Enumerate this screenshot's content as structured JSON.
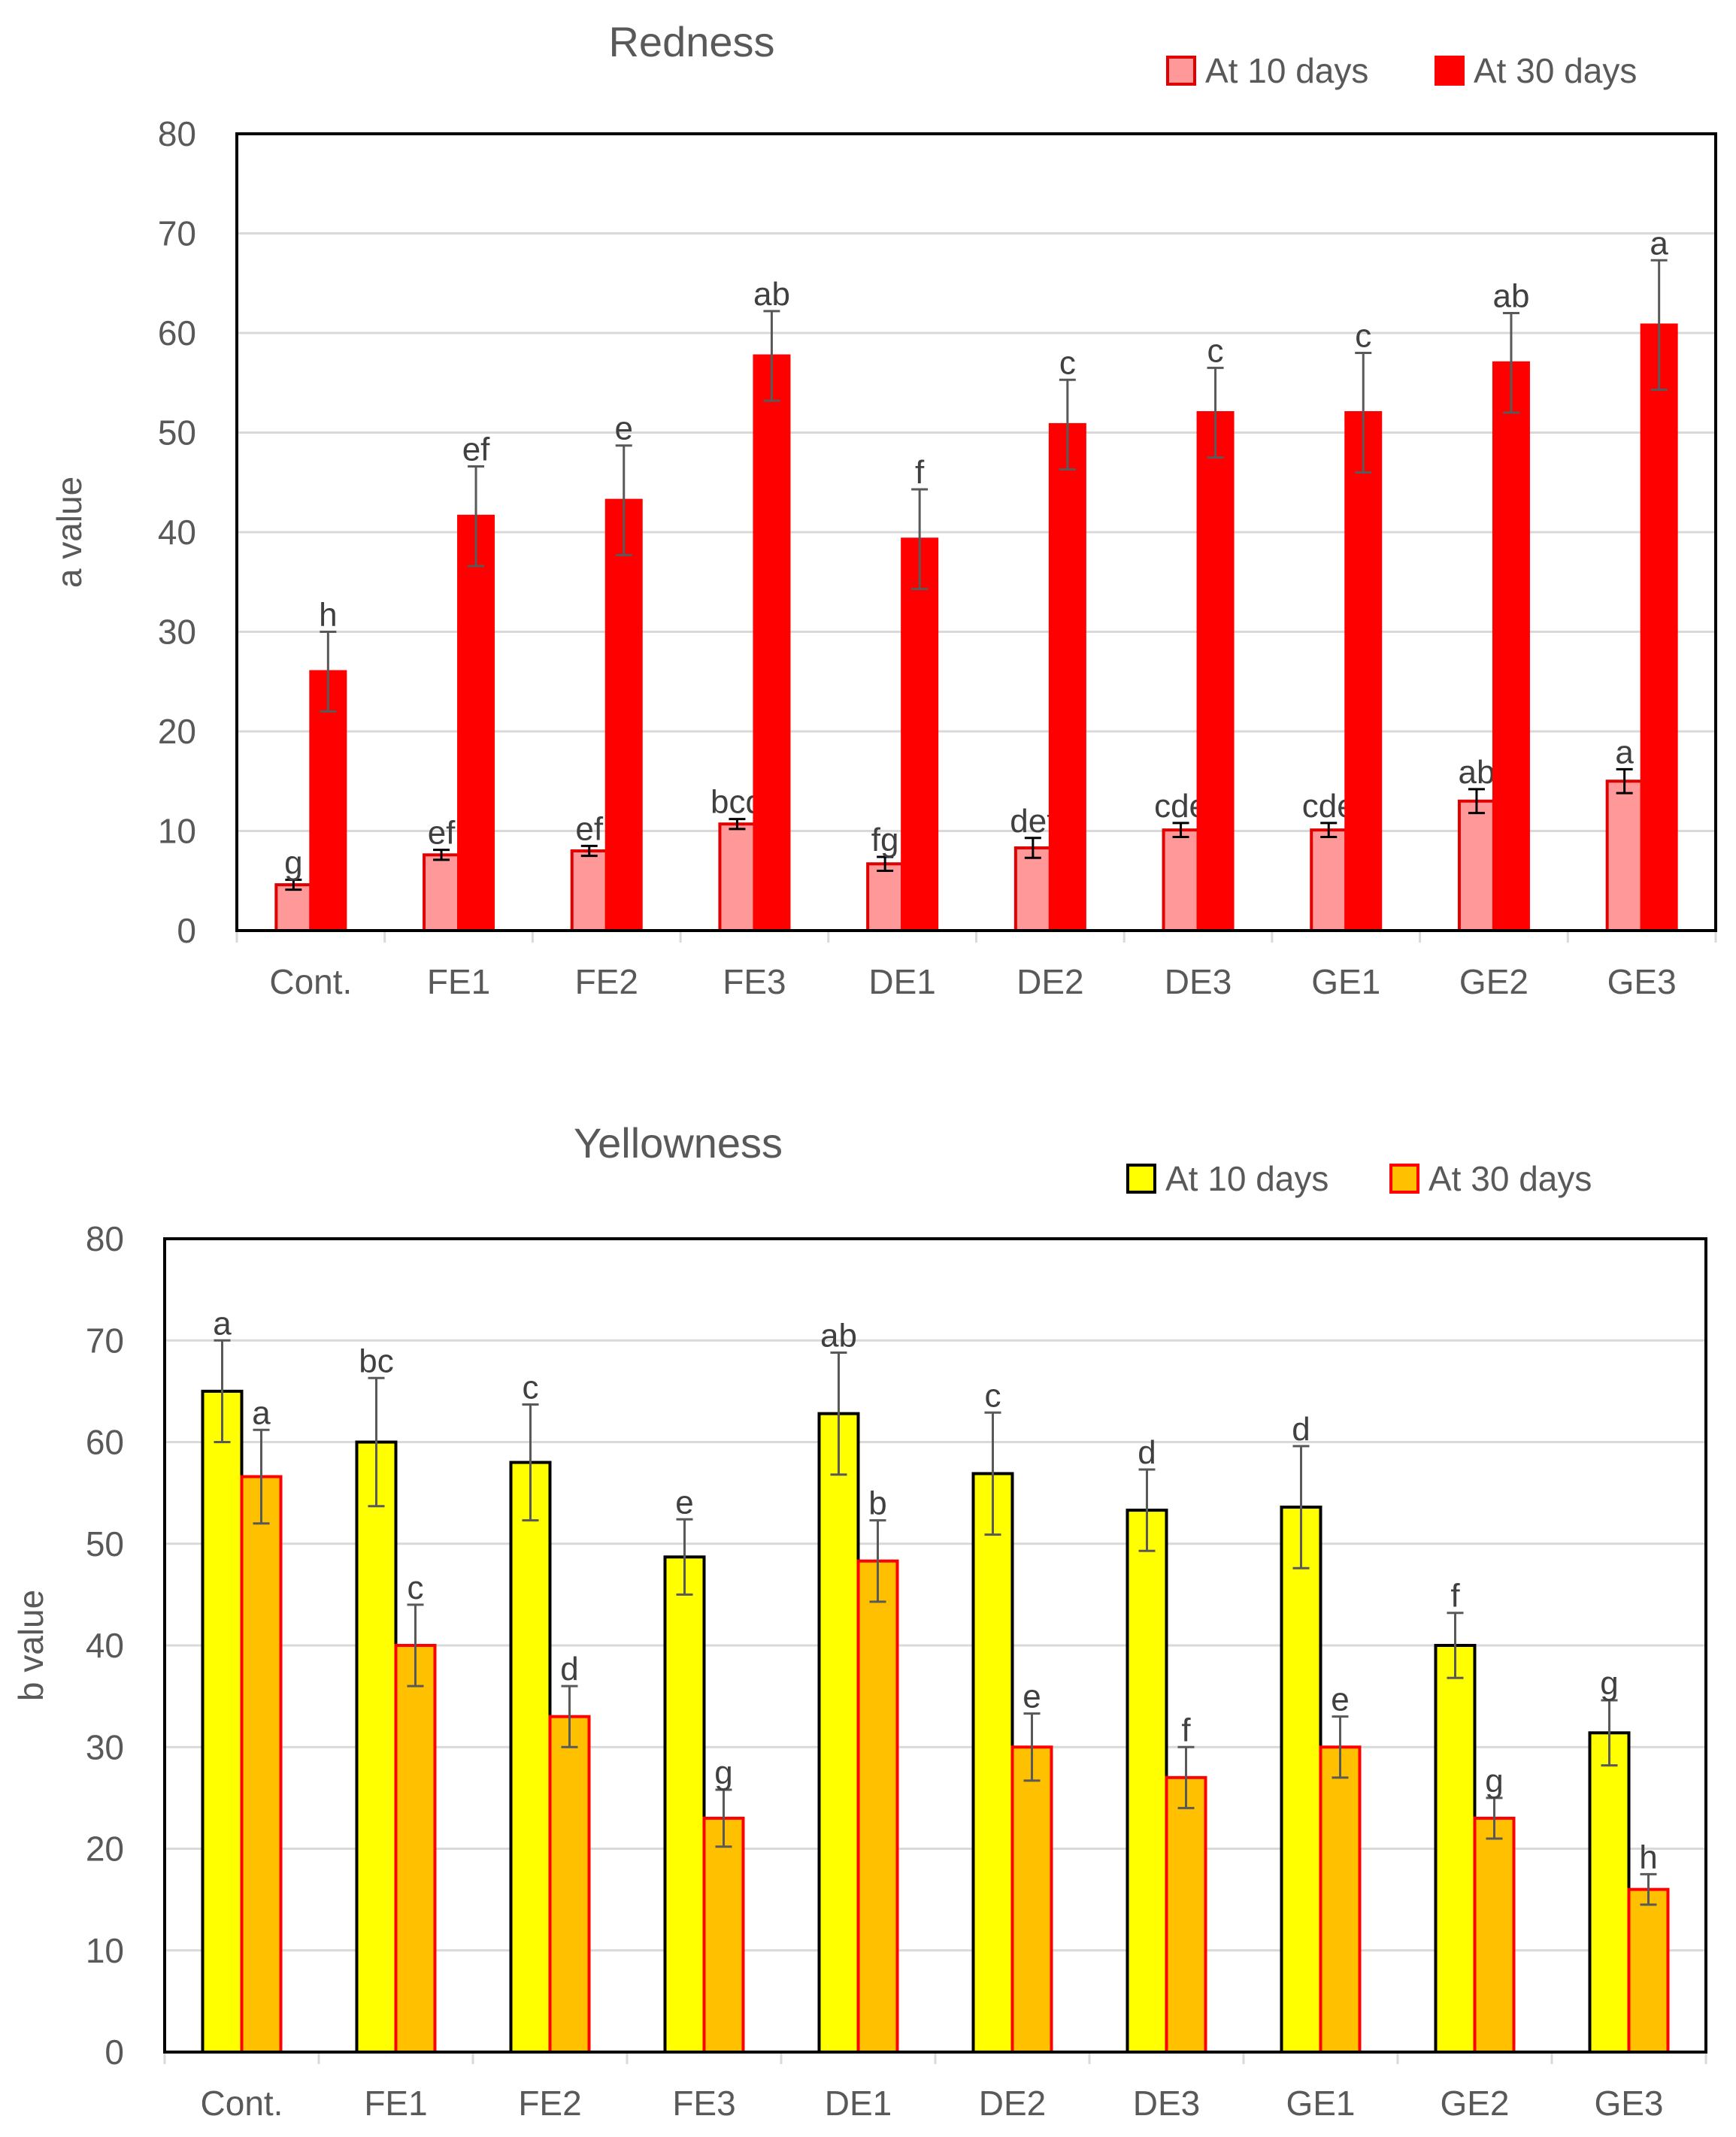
{
  "chart_data": [
    {
      "type": "bar",
      "title": "Redness",
      "ylabel": "a value",
      "xlabel": "",
      "ylim": [
        0,
        80
      ],
      "yticks": [
        0,
        10,
        20,
        30,
        40,
        50,
        60,
        70,
        80
      ],
      "grid": true,
      "legend_position": "top-right",
      "categories": [
        "Cont.",
        "FE1",
        "FE2",
        "FE3",
        "DE1",
        "DE2",
        "DE3",
        "GE1",
        "GE2",
        "GE3"
      ],
      "series": [
        {
          "name": "At 10 days",
          "color": "#ff9999",
          "edge": "#e00000",
          "values": [
            4.6,
            7.6,
            8.0,
            10.7,
            6.7,
            8.3,
            10.1,
            10.1,
            13.0,
            15.0
          ],
          "errors": [
            0.5,
            0.5,
            0.5,
            0.5,
            0.7,
            1.0,
            0.7,
            0.7,
            1.2,
            1.2
          ],
          "labels": [
            "g",
            "ef",
            "ef",
            "bcd",
            "fg",
            "def",
            "cde",
            "cde",
            "ab",
            "a"
          ]
        },
        {
          "name": "At 30 days",
          "color": "#ff0000",
          "edge": "#ff0000",
          "values": [
            26.0,
            41.6,
            43.2,
            57.7,
            39.3,
            50.8,
            52.0,
            52.0,
            57.0,
            60.8
          ],
          "errors": [
            4.0,
            5.0,
            5.5,
            4.5,
            5.0,
            4.5,
            4.5,
            6.0,
            5.0,
            6.5
          ],
          "labels": [
            "h",
            "ef",
            "e",
            "ab",
            "f",
            "c",
            "c",
            "c",
            "ab",
            "a"
          ]
        }
      ]
    },
    {
      "type": "bar",
      "title": "Yellowness",
      "ylabel": "b value",
      "xlabel": "",
      "ylim": [
        0,
        80
      ],
      "yticks": [
        0,
        10,
        20,
        30,
        40,
        50,
        60,
        70,
        80
      ],
      "grid": true,
      "legend_position": "top-right",
      "categories": [
        "Cont.",
        "FE1",
        "FE2",
        "FE3",
        "DE1",
        "DE2",
        "DE3",
        "GE1",
        "GE2",
        "GE3"
      ],
      "series": [
        {
          "name": "At 10 days",
          "color": "#ffff00",
          "edge": "#000000",
          "values": [
            65.0,
            60.0,
            58.0,
            48.7,
            62.8,
            56.9,
            53.3,
            53.6,
            40.0,
            31.4
          ],
          "errors": [
            5.0,
            6.3,
            5.7,
            3.7,
            6.0,
            6.0,
            4.0,
            6.0,
            3.2,
            3.2
          ],
          "labels": [
            "a",
            "bc",
            "c",
            "e",
            "ab",
            "c",
            "d",
            "d",
            "f",
            "g"
          ]
        },
        {
          "name": "At 30 days",
          "color": "#ffc000",
          "edge": "#ff0000",
          "values": [
            56.6,
            40.0,
            33.0,
            23.0,
            48.3,
            30.0,
            27.0,
            30.0,
            23.0,
            16.0
          ],
          "errors": [
            4.6,
            4.0,
            3.0,
            2.8,
            4.0,
            3.3,
            3.0,
            3.0,
            2.0,
            1.5
          ],
          "labels": [
            "a",
            "c",
            "d",
            "g",
            "b",
            "e",
            "f",
            "e",
            "g",
            "h"
          ]
        }
      ]
    }
  ]
}
